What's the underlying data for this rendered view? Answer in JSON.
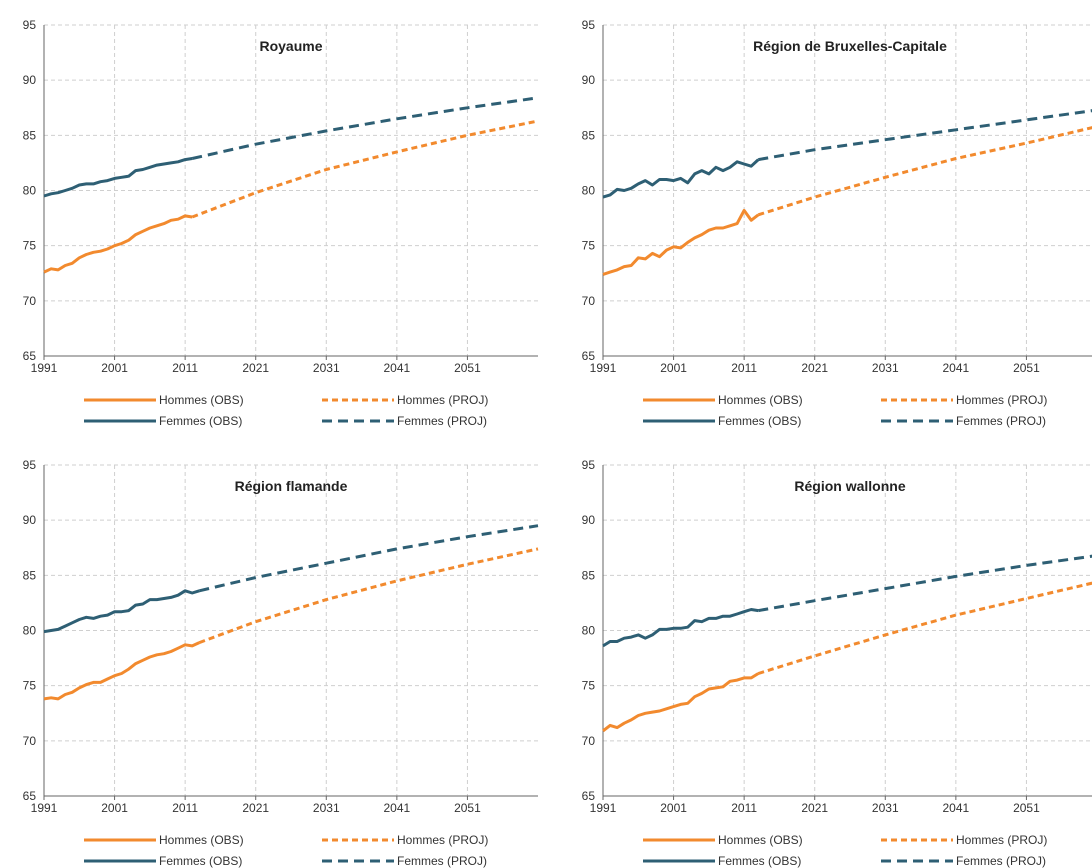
{
  "colors": {
    "hommes": "#F28A2E",
    "femmes": "#2E5F74",
    "grid": "#CFCFCF",
    "axis": "#666666"
  },
  "legend": {
    "hommes_obs": "Hommes (OBS)",
    "hommes_proj": "Hommes (PROJ)",
    "femmes_obs": "Femmes (OBS)",
    "femmes_proj": "Femmes (PROJ)"
  },
  "chart_data": [
    {
      "type": "line",
      "title": "Royaume",
      "xlim": [
        1991,
        2061
      ],
      "ylim": [
        65,
        95
      ],
      "x_ticks": [
        1991,
        2001,
        2011,
        2021,
        2031,
        2041,
        2051
      ],
      "y_ticks": [
        65,
        70,
        75,
        80,
        85,
        90,
        95
      ],
      "grid": true,
      "legend_position": "bottom",
      "series": [
        {
          "name": "Hommes (OBS)",
          "style": "solid",
          "color": "hommes",
          "x": [
            1991,
            1992,
            1993,
            1994,
            1995,
            1996,
            1997,
            1998,
            1999,
            2000,
            2001,
            2002,
            2003,
            2004,
            2005,
            2006,
            2007,
            2008,
            2009,
            2010,
            2011,
            2012
          ],
          "values": [
            72.6,
            72.9,
            72.8,
            73.2,
            73.4,
            73.9,
            74.2,
            74.4,
            74.5,
            74.7,
            75.0,
            75.2,
            75.5,
            76.0,
            76.3,
            76.6,
            76.8,
            77.0,
            77.3,
            77.4,
            77.7,
            77.6
          ]
        },
        {
          "name": "Hommes (PROJ)",
          "style": "dashed",
          "color": "hommes",
          "x": [
            2012,
            2021,
            2031,
            2041,
            2051,
            2061
          ],
          "values": [
            77.6,
            79.8,
            81.9,
            83.5,
            85.0,
            86.3
          ]
        },
        {
          "name": "Femmes (OBS)",
          "style": "solid",
          "color": "femmes",
          "x": [
            1991,
            1992,
            1993,
            1994,
            1995,
            1996,
            1997,
            1998,
            1999,
            2000,
            2001,
            2002,
            2003,
            2004,
            2005,
            2006,
            2007,
            2008,
            2009,
            2010,
            2011,
            2012
          ],
          "values": [
            79.5,
            79.7,
            79.8,
            80.0,
            80.2,
            80.5,
            80.6,
            80.6,
            80.8,
            80.9,
            81.1,
            81.2,
            81.3,
            81.8,
            81.9,
            82.1,
            82.3,
            82.4,
            82.5,
            82.6,
            82.8,
            82.9
          ]
        },
        {
          "name": "Femmes (PROJ)",
          "style": "dashed",
          "color": "femmes",
          "x": [
            2012,
            2021,
            2031,
            2041,
            2051,
            2061
          ],
          "values": [
            82.9,
            84.2,
            85.4,
            86.5,
            87.5,
            88.4
          ]
        }
      ]
    },
    {
      "type": "line",
      "title": "Région de Bruxelles-Capitale",
      "xlim": [
        1991,
        2061
      ],
      "ylim": [
        65,
        95
      ],
      "x_ticks": [
        1991,
        2001,
        2011,
        2021,
        2031,
        2041,
        2051
      ],
      "y_ticks": [
        65,
        70,
        75,
        80,
        85,
        90,
        95
      ],
      "grid": true,
      "legend_position": "bottom",
      "series": [
        {
          "name": "Hommes (OBS)",
          "style": "solid",
          "color": "hommes",
          "x": [
            1991,
            1992,
            1993,
            1994,
            1995,
            1996,
            1997,
            1998,
            1999,
            2000,
            2001,
            2002,
            2003,
            2004,
            2005,
            2006,
            2007,
            2008,
            2009,
            2010,
            2011,
            2012,
            2013
          ],
          "values": [
            72.4,
            72.6,
            72.8,
            73.1,
            73.2,
            73.9,
            73.8,
            74.3,
            74.0,
            74.6,
            74.9,
            74.8,
            75.3,
            75.7,
            76.0,
            76.4,
            76.6,
            76.6,
            76.8,
            77.0,
            78.2,
            77.3,
            77.8
          ]
        },
        {
          "name": "Hommes (PROJ)",
          "style": "dashed",
          "color": "hommes",
          "x": [
            2013,
            2021,
            2031,
            2041,
            2051,
            2061
          ],
          "values": [
            77.8,
            79.4,
            81.2,
            82.9,
            84.3,
            85.8
          ]
        },
        {
          "name": "Femmes (OBS)",
          "style": "solid",
          "color": "femmes",
          "x": [
            1991,
            1992,
            1993,
            1994,
            1995,
            1996,
            1997,
            1998,
            1999,
            2000,
            2001,
            2002,
            2003,
            2004,
            2005,
            2006,
            2007,
            2008,
            2009,
            2010,
            2011,
            2012,
            2013
          ],
          "values": [
            79.4,
            79.6,
            80.1,
            80.0,
            80.2,
            80.6,
            80.9,
            80.5,
            81.0,
            81.0,
            80.9,
            81.1,
            80.7,
            81.5,
            81.8,
            81.5,
            82.1,
            81.8,
            82.1,
            82.6,
            82.4,
            82.2,
            82.8
          ]
        },
        {
          "name": "Femmes (PROJ)",
          "style": "dashed",
          "color": "femmes",
          "x": [
            2013,
            2021,
            2031,
            2041,
            2051,
            2061
          ],
          "values": [
            82.8,
            83.7,
            84.6,
            85.5,
            86.4,
            87.3
          ]
        }
      ]
    },
    {
      "type": "line",
      "title": "Région flamande",
      "xlim": [
        1991,
        2061
      ],
      "ylim": [
        65,
        95
      ],
      "x_ticks": [
        1991,
        2001,
        2011,
        2021,
        2031,
        2041,
        2051
      ],
      "y_ticks": [
        65,
        70,
        75,
        80,
        85,
        90,
        95
      ],
      "grid": true,
      "legend_position": "bottom",
      "series": [
        {
          "name": "Hommes (OBS)",
          "style": "solid",
          "color": "hommes",
          "x": [
            1991,
            1992,
            1993,
            1994,
            1995,
            1996,
            1997,
            1998,
            1999,
            2000,
            2001,
            2002,
            2003,
            2004,
            2005,
            2006,
            2007,
            2008,
            2009,
            2010,
            2011,
            2012,
            2013
          ],
          "values": [
            73.8,
            73.9,
            73.8,
            74.2,
            74.4,
            74.8,
            75.1,
            75.3,
            75.3,
            75.6,
            75.9,
            76.1,
            76.5,
            77.0,
            77.3,
            77.6,
            77.8,
            77.9,
            78.1,
            78.4,
            78.7,
            78.6,
            78.9
          ]
        },
        {
          "name": "Hommes (PROJ)",
          "style": "dashed",
          "color": "hommes",
          "x": [
            2013,
            2021,
            2031,
            2041,
            2051,
            2061
          ],
          "values": [
            78.9,
            80.8,
            82.8,
            84.5,
            86.0,
            87.4
          ]
        },
        {
          "name": "Femmes (OBS)",
          "style": "solid",
          "color": "femmes",
          "x": [
            1991,
            1992,
            1993,
            1994,
            1995,
            1996,
            1997,
            1998,
            1999,
            2000,
            2001,
            2002,
            2003,
            2004,
            2005,
            2006,
            2007,
            2008,
            2009,
            2010,
            2011,
            2012,
            2013
          ],
          "values": [
            79.9,
            80.0,
            80.1,
            80.4,
            80.7,
            81.0,
            81.2,
            81.1,
            81.3,
            81.4,
            81.7,
            81.7,
            81.8,
            82.3,
            82.4,
            82.8,
            82.8,
            82.9,
            83.0,
            83.2,
            83.6,
            83.4,
            83.6
          ]
        },
        {
          "name": "Femmes (PROJ)",
          "style": "dashed",
          "color": "femmes",
          "x": [
            2013,
            2021,
            2031,
            2041,
            2051,
            2061
          ],
          "values": [
            83.6,
            84.8,
            86.1,
            87.4,
            88.5,
            89.5
          ]
        }
      ]
    },
    {
      "type": "line",
      "title": "Région wallonne",
      "xlim": [
        1991,
        2061
      ],
      "ylim": [
        65,
        95
      ],
      "x_ticks": [
        1991,
        2001,
        2011,
        2021,
        2031,
        2041,
        2051
      ],
      "y_ticks": [
        65,
        70,
        75,
        80,
        85,
        90,
        95
      ],
      "grid": true,
      "legend_position": "bottom",
      "series": [
        {
          "name": "Hommes (OBS)",
          "style": "solid",
          "color": "hommes",
          "x": [
            1991,
            1992,
            1993,
            1994,
            1995,
            1996,
            1997,
            1998,
            1999,
            2000,
            2001,
            2002,
            2003,
            2004,
            2005,
            2006,
            2007,
            2008,
            2009,
            2010,
            2011,
            2012,
            2013
          ],
          "values": [
            70.9,
            71.4,
            71.2,
            71.6,
            71.9,
            72.3,
            72.5,
            72.6,
            72.7,
            72.9,
            73.1,
            73.3,
            73.4,
            74.0,
            74.3,
            74.7,
            74.8,
            74.9,
            75.4,
            75.5,
            75.7,
            75.7,
            76.1
          ]
        },
        {
          "name": "Hommes (PROJ)",
          "style": "dashed",
          "color": "hommes",
          "x": [
            2013,
            2021,
            2031,
            2041,
            2051,
            2061
          ],
          "values": [
            76.1,
            77.7,
            79.6,
            81.4,
            82.9,
            84.4
          ]
        },
        {
          "name": "Femmes (OBS)",
          "style": "solid",
          "color": "femmes",
          "x": [
            1991,
            1992,
            1993,
            1994,
            1995,
            1996,
            1997,
            1998,
            1999,
            2000,
            2001,
            2002,
            2003,
            2004,
            2005,
            2006,
            2007,
            2008,
            2009,
            2010,
            2011,
            2012,
            2013
          ],
          "values": [
            78.6,
            79.0,
            79.0,
            79.3,
            79.4,
            79.6,
            79.3,
            79.6,
            80.1,
            80.1,
            80.2,
            80.2,
            80.3,
            80.9,
            80.8,
            81.1,
            81.1,
            81.3,
            81.3,
            81.5,
            81.7,
            81.9,
            81.8
          ]
        },
        {
          "name": "Femmes (PROJ)",
          "style": "dashed",
          "color": "femmes",
          "x": [
            2013,
            2021,
            2031,
            2041,
            2051,
            2061
          ],
          "values": [
            81.8,
            82.7,
            83.8,
            84.9,
            85.9,
            86.8
          ]
        }
      ]
    }
  ]
}
